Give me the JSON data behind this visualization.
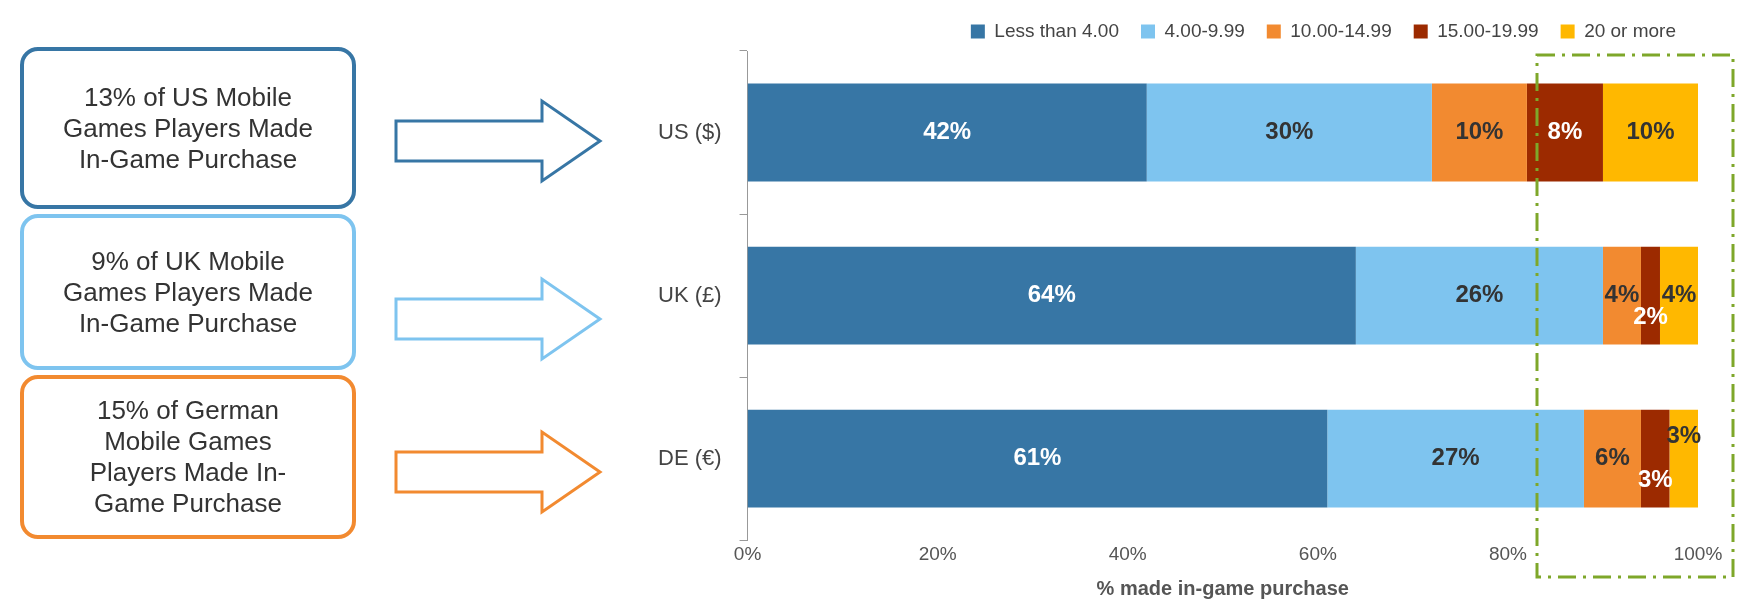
{
  "chart_data": {
    "type": "bar",
    "orientation": "horizontal",
    "stacked": true,
    "xlabel": "% made in-game purchase",
    "categories": [
      "US ($)",
      "UK (£)",
      "DE (€)"
    ],
    "series": [
      {
        "name": "Less than 4.00",
        "color": "#3776a5",
        "values": [
          42,
          64,
          61
        ],
        "value_labels": [
          "42%",
          "64%",
          "61%"
        ]
      },
      {
        "name": "4.00-9.99",
        "color": "#7ec4ef",
        "values": [
          30,
          26,
          27
        ],
        "value_labels": [
          "30%",
          "26%",
          "27%"
        ]
      },
      {
        "name": "10.00-14.99",
        "color": "#f28a30",
        "values": [
          10,
          4,
          6
        ],
        "value_labels": [
          "10%",
          "4%",
          "6%"
        ]
      },
      {
        "name": "15.00-19.99",
        "color": "#9c2a00",
        "values": [
          8,
          2,
          3
        ],
        "value_labels": [
          "8%",
          "2%",
          "3%"
        ]
      },
      {
        "name": "20 or more",
        "color": "#ffb800",
        "values": [
          10,
          4,
          3
        ],
        "value_labels": [
          "10%",
          "4%",
          "3%"
        ]
      }
    ],
    "xlim": [
      0,
      100
    ],
    "xticks": [
      {
        "value": 0,
        "label": "0%"
      },
      {
        "value": 20,
        "label": "20%"
      },
      {
        "value": 40,
        "label": "40%"
      },
      {
        "value": 60,
        "label": "60%"
      },
      {
        "value": 80,
        "label": "80%"
      },
      {
        "value": 100,
        "label": "100%"
      }
    ],
    "legend": "top right",
    "annotations": [
      "13% of US Mobile Games Players Made In-Game Purchase",
      "9% of UK Mobile Games Players Made In-Game Purchase",
      "15% of German Mobile Games Players Made In-Game Purchase"
    ]
  }
}
